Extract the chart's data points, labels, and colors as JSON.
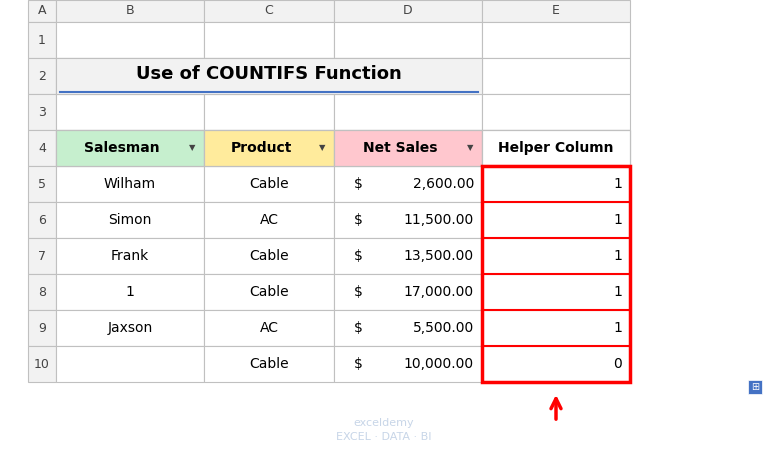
{
  "title": "Use of COUNTIFS Function",
  "col_headers": [
    "Salesman",
    "Product",
    "Net Sales",
    "Helper Column"
  ],
  "col_header_bg": [
    "#c6efce",
    "#ffeb9c",
    "#ffc7ce",
    "#ffffff"
  ],
  "rows": [
    [
      "Wilham",
      "Cable",
      "$ 2,600.00",
      "1"
    ],
    [
      "Simon",
      "AC",
      "$ 11,500.00",
      "1"
    ],
    [
      "Frank",
      "Cable",
      "$ 13,500.00",
      "1"
    ],
    [
      "1",
      "Cable",
      "$ 17,000.00",
      "1"
    ],
    [
      "Jaxson",
      "AC",
      "$ 5,500.00",
      "1"
    ],
    [
      "",
      "Cable",
      "$ 10,000.00",
      "0"
    ]
  ],
  "col_letters": [
    "A",
    "B",
    "C",
    "D",
    "E"
  ],
  "row_numbers": [
    "1",
    "2",
    "3",
    "4",
    "5",
    "6",
    "7",
    "8",
    "9",
    "10"
  ],
  "bg_color": "#ffffff",
  "grid_color": "#c0c0c0",
  "header_row_bg": "#e0e0e0",
  "title_bg": "#f2f2f2",
  "red_border_color": "#ff0000",
  "arrow_color": "#ff0000",
  "watermark_text": "exceldemy\nEXCEL · DATA · BI"
}
